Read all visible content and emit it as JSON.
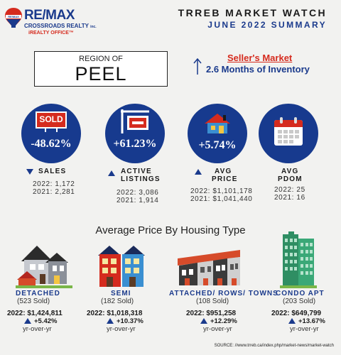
{
  "logo": {
    "brand": "RE/MAX",
    "balloon_text": "RE/MAX",
    "office": "CROSSROADS REALTY",
    "office_suffix": "inc.",
    "tagline": "iREALTY OFFICE™"
  },
  "header": {
    "title": "TRREB MARKET WATCH",
    "subtitle": "JUNE 2022 SUMMARY"
  },
  "region": {
    "label": "REGION OF",
    "name": "PEEL"
  },
  "market": {
    "condition": "Seller's Market",
    "inventory": "2.6 Months of Inventory"
  },
  "stats": [
    {
      "icon": "sold-sign-icon",
      "sign_text": "SOLD",
      "change": "-48.62%",
      "direction": "down",
      "label": [
        "SALES"
      ],
      "y2022": "2022: 1,172",
      "y2021": "2021: 2,281"
    },
    {
      "icon": "for-sale-sign-icon",
      "change": "+61.23%",
      "direction": "up",
      "label": [
        "ACTIVE",
        "LISTINGS"
      ],
      "y2022": "2022: 3,086",
      "y2021": "2021: 1,914"
    },
    {
      "icon": "house-icon",
      "change": "+5.74%",
      "direction": "up",
      "label": [
        "AVG",
        "PRICE"
      ],
      "y2022": "2022: $1,101,178",
      "y2021": "2021: $1,041,440"
    },
    {
      "icon": "calendar-icon",
      "change": "",
      "direction": "none",
      "label": [
        "AVG",
        "PDOM"
      ],
      "y2022": "2022: 25",
      "y2021": "2021: 16"
    }
  ],
  "section_title": "Average Price By Housing Type",
  "housing_types": [
    {
      "icon": "detached-house-icon",
      "name": "DETACHED",
      "sold": "(523 Sold)",
      "price": "2022: $1,424,811",
      "change": "+5.42%",
      "yoy": "yr-over-yr"
    },
    {
      "icon": "semi-house-icon",
      "name": "SEMI",
      "sold": "(182 Sold)",
      "price": "2022: $1,018,318",
      "change": "+10.37%",
      "yoy": "yr-over-yr"
    },
    {
      "icon": "townhouse-icon",
      "name": "ATTACHED/ ROWS/ TOWNS",
      "sold": "(108 Sold)",
      "price": "2022: $951,258",
      "change": "+12.29%",
      "yoy": "yr-over-yr"
    },
    {
      "icon": "condo-tower-icon",
      "name": "CONDO APT",
      "sold": "(203 Sold)",
      "price": "2022: $649,799",
      "change": "+13.67%",
      "yoy": "yr-over-yr"
    }
  ],
  "source": "SOURCE:  //www.trreb.ca/index.php/market-news/market-watch",
  "colors": {
    "navy": "#173a8e",
    "red": "#d52b1e",
    "background": "#f2f2f0"
  }
}
